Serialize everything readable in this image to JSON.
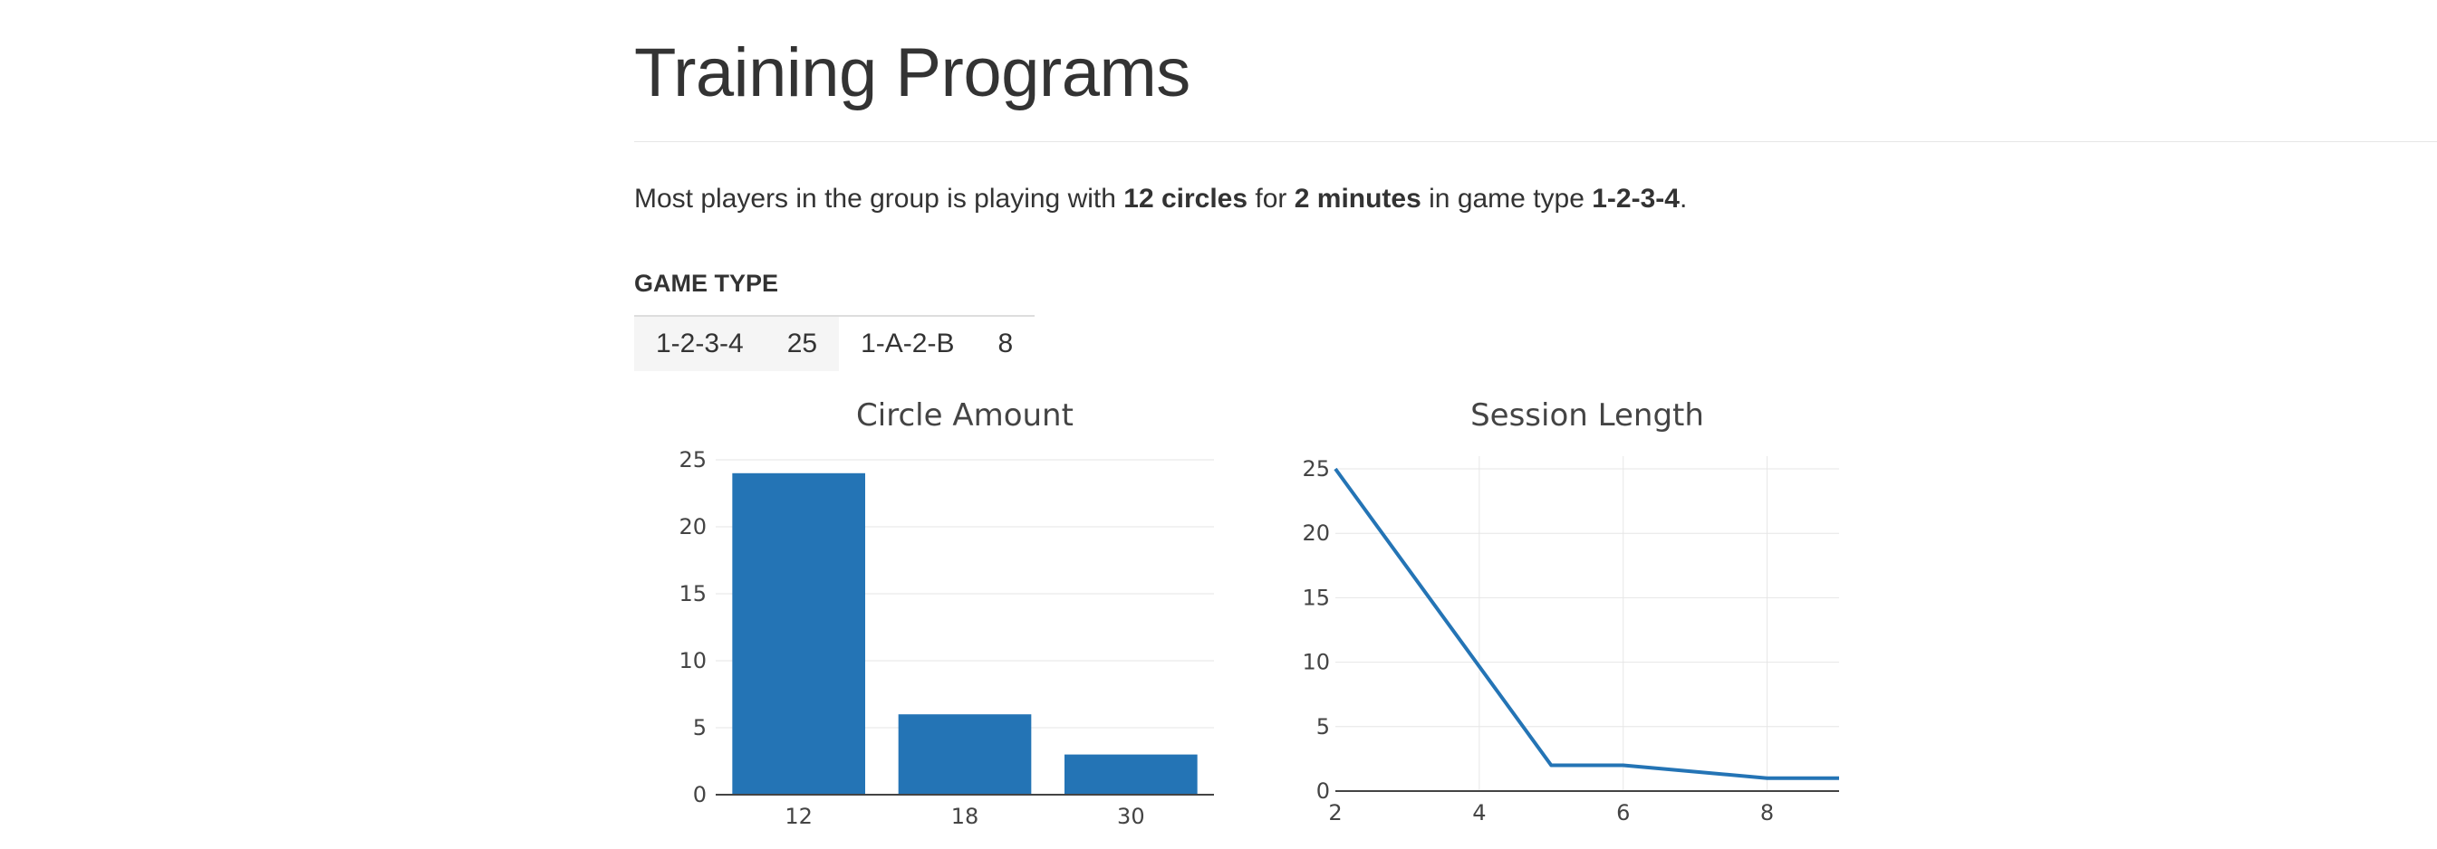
{
  "page": {
    "title": "Training Programs",
    "summary": {
      "prefix": "Most players in the group is playing with ",
      "circles": "12 circles",
      "for_word": " for ",
      "minutes": "2 minutes",
      "mid": " in game type ",
      "game_type": "1-2-3-4",
      "suffix": "."
    }
  },
  "game_type": {
    "label": "GAME TYPE",
    "items": [
      {
        "name": "1-2-3-4",
        "count": "25"
      },
      {
        "name": "1-A-2-B",
        "count": "8"
      }
    ]
  },
  "colors": {
    "accent": "#2474b5",
    "grid": "#e6e6e6",
    "axis": "#444444"
  },
  "chart_data": [
    {
      "type": "bar",
      "title": "Circle Amount",
      "categories": [
        "12",
        "18",
        "30"
      ],
      "values": [
        24,
        6,
        3
      ],
      "ylim": [
        0,
        25
      ],
      "yticks": [
        0,
        5,
        10,
        15,
        20,
        25
      ],
      "grid": true,
      "color": "#2474b5"
    },
    {
      "type": "line",
      "title": "Session Length",
      "x": [
        2,
        5,
        6,
        8,
        9
      ],
      "y": [
        25,
        2,
        2,
        1,
        1
      ],
      "xlim": [
        2,
        9
      ],
      "ylim": [
        0,
        25
      ],
      "xticks": [
        2,
        4,
        6,
        8
      ],
      "yticks": [
        0,
        5,
        10,
        15,
        20,
        25
      ],
      "grid": true,
      "color": "#2474b5"
    }
  ]
}
